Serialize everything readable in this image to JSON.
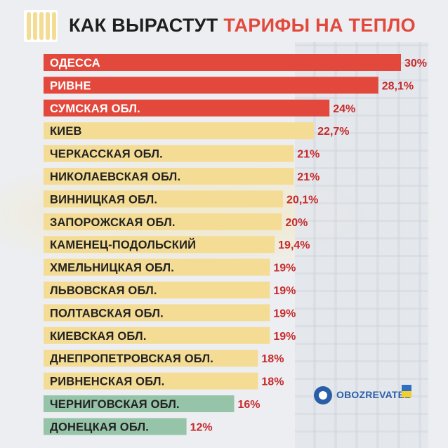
{
  "title": {
    "part1": "КАК ВЫРАСТУТ",
    "part2": "ТАРИФЫ НА ТЕПЛО"
  },
  "logo": {
    "text": "OBOZREVATEL",
    "suffix": "UA"
  },
  "colors": {
    "red": "#e2493c",
    "yellow": "#f4dc95",
    "green": "#96c4a8",
    "value_text": "#c82a2a",
    "label_dark": "#222222",
    "label_light": "#ffffff"
  },
  "chart_data": {
    "type": "bar",
    "orientation": "horizontal",
    "title": "КАК ВЫРАСТУТ ТАРИФЫ НА ТЕПЛО",
    "xlim": [
      0,
      30
    ],
    "grid": false,
    "categories": [
      "ОДЕССА",
      "РИВНЕ",
      "СУМСКАЯ ОБЛ.",
      "КИЕВ",
      "ЧЕРКАССКАЯ ОБЛ.",
      "НИКОЛАЕВСКАЯ ОБЛ.",
      "ВИННИЦКАЯ ОБЛ.",
      "ЗАПОРОЖСКАЯ ОБЛ.",
      "КАМЕНЕЦ-ПОДОЛЬСКИЙ",
      "ХМЕЛЬНИЦКАЯ ОБЛ.",
      "ЛЬВОВСКАЯ ОБЛ.",
      "ПОЛТАВСКАЯ ОБЛ.",
      "КИЕВСКАЯ ОБЛ.",
      "ДНЕПРОПЕТРОВСКАЯ ОБЛ.",
      "РИВНЕНСКАЯ ОБЛ.",
      "ЧЕРНИГОВСКАЯ ОБЛ.",
      "ДОНЕЦКАЯ ОБЛ."
    ],
    "values": [
      30,
      28.1,
      24,
      22.7,
      21,
      21,
      20.1,
      20,
      19.4,
      19,
      19,
      19,
      19,
      18,
      18,
      16,
      12
    ],
    "value_labels": [
      "30%",
      "28,1%",
      "24%",
      "22,7%",
      "21%",
      "21%",
      "20,1%",
      "20%",
      "19,4%",
      "19%",
      "19%",
      "19%",
      "19%",
      "18%",
      "18%",
      "16%",
      "12%"
    ],
    "bar_colors": [
      "red",
      "red",
      "red",
      "yellow",
      "yellow",
      "yellow",
      "yellow",
      "yellow",
      "yellow",
      "yellow",
      "yellow",
      "yellow",
      "yellow",
      "yellow",
      "yellow",
      "green",
      "green"
    ]
  }
}
